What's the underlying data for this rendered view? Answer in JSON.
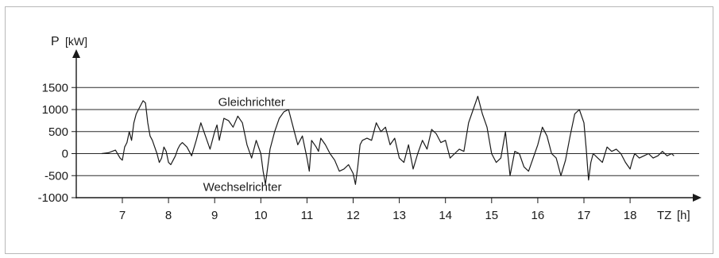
{
  "chart_data": {
    "type": "line",
    "y_axis_symbol": "P",
    "y_axis_unit": "[kW]",
    "x_axis_symbol": "TZ",
    "x_axis_unit": "[h]",
    "y_ticks": [
      1500,
      1000,
      500,
      0,
      -500,
      -1000
    ],
    "x_ticks": [
      7,
      8,
      9,
      10,
      11,
      12,
      13,
      14,
      15,
      16,
      17,
      18
    ],
    "ylim": [
      -1000,
      1500
    ],
    "xlim": [
      6,
      19
    ],
    "grid": "horizontal",
    "annotations": [
      {
        "text": "Gleichrichter",
        "x": 9.8,
        "y": 1170
      },
      {
        "text": "Wechselrichter",
        "x": 9.6,
        "y": -760
      }
    ],
    "series": [
      {
        "x": [
          6.55,
          6.7,
          6.85,
          6.95,
          7.0,
          7.05,
          7.1,
          7.15,
          7.2,
          7.25,
          7.3,
          7.35,
          7.4,
          7.45,
          7.5,
          7.55,
          7.6,
          7.65,
          7.7,
          7.75,
          7.8,
          7.85,
          7.9,
          7.95,
          8.0,
          8.05,
          8.1,
          8.15,
          8.2,
          8.25,
          8.3,
          8.4,
          8.5,
          8.6,
          8.7,
          8.8,
          8.9,
          9.0,
          9.05,
          9.1,
          9.2,
          9.3,
          9.4,
          9.5,
          9.6,
          9.7,
          9.8,
          9.9,
          10.0,
          10.05,
          10.1,
          10.15,
          10.2,
          10.3,
          10.4,
          10.5,
          10.6,
          10.7,
          10.8,
          10.9,
          11.0,
          11.05,
          11.1,
          11.2,
          11.25,
          11.3,
          11.4,
          11.5,
          11.6,
          11.7,
          11.8,
          11.9,
          12.0,
          12.05,
          12.1,
          12.15,
          12.2,
          12.3,
          12.4,
          12.5,
          12.6,
          12.7,
          12.8,
          12.9,
          13.0,
          13.1,
          13.2,
          13.3,
          13.4,
          13.5,
          13.6,
          13.7,
          13.8,
          13.9,
          14.0,
          14.1,
          14.2,
          14.3,
          14.4,
          14.5,
          14.6,
          14.7,
          14.8,
          14.9,
          15.0,
          15.1,
          15.2,
          15.3,
          15.4,
          15.5,
          15.6,
          15.7,
          15.8,
          15.9,
          16.0,
          16.1,
          16.2,
          16.3,
          16.4,
          16.5,
          16.6,
          16.7,
          16.8,
          16.9,
          17.0,
          17.05,
          17.1,
          17.15,
          17.2,
          17.3,
          17.4,
          17.5,
          17.6,
          17.7,
          17.8,
          17.9,
          18.0,
          18.05,
          18.1,
          18.2,
          18.3,
          18.4,
          18.5,
          18.6,
          18.7,
          18.8,
          18.9,
          18.95
        ],
        "y": [
          0,
          20,
          80,
          -100,
          -150,
          150,
          250,
          500,
          300,
          700,
          900,
          1000,
          1100,
          1200,
          1150,
          700,
          400,
          300,
          150,
          0,
          -200,
          -100,
          150,
          50,
          -200,
          -250,
          -150,
          -50,
          100,
          200,
          250,
          150,
          -50,
          300,
          700,
          400,
          100,
          500,
          650,
          300,
          800,
          750,
          600,
          850,
          700,
          200,
          -100,
          300,
          0,
          -400,
          -700,
          -300,
          100,
          500,
          800,
          950,
          1000,
          600,
          200,
          400,
          -100,
          -400,
          300,
          150,
          50,
          350,
          200,
          0,
          -150,
          -400,
          -350,
          -250,
          -450,
          -700,
          -300,
          200,
          300,
          350,
          300,
          700,
          500,
          600,
          200,
          350,
          -100,
          -200,
          200,
          -350,
          0,
          300,
          100,
          550,
          450,
          250,
          300,
          -100,
          0,
          100,
          50,
          700,
          1000,
          1300,
          900,
          600,
          0,
          -200,
          -100,
          500,
          -500,
          50,
          0,
          -300,
          -400,
          -100,
          200,
          600,
          400,
          0,
          -100,
          -500,
          -150,
          400,
          900,
          1000,
          700,
          100,
          -600,
          -200,
          0,
          -100,
          -200,
          150,
          50,
          100,
          0,
          -200,
          -350,
          -150,
          0,
          -100,
          -50,
          0,
          -100,
          -50,
          50,
          -50,
          0,
          -50
        ]
      }
    ]
  }
}
